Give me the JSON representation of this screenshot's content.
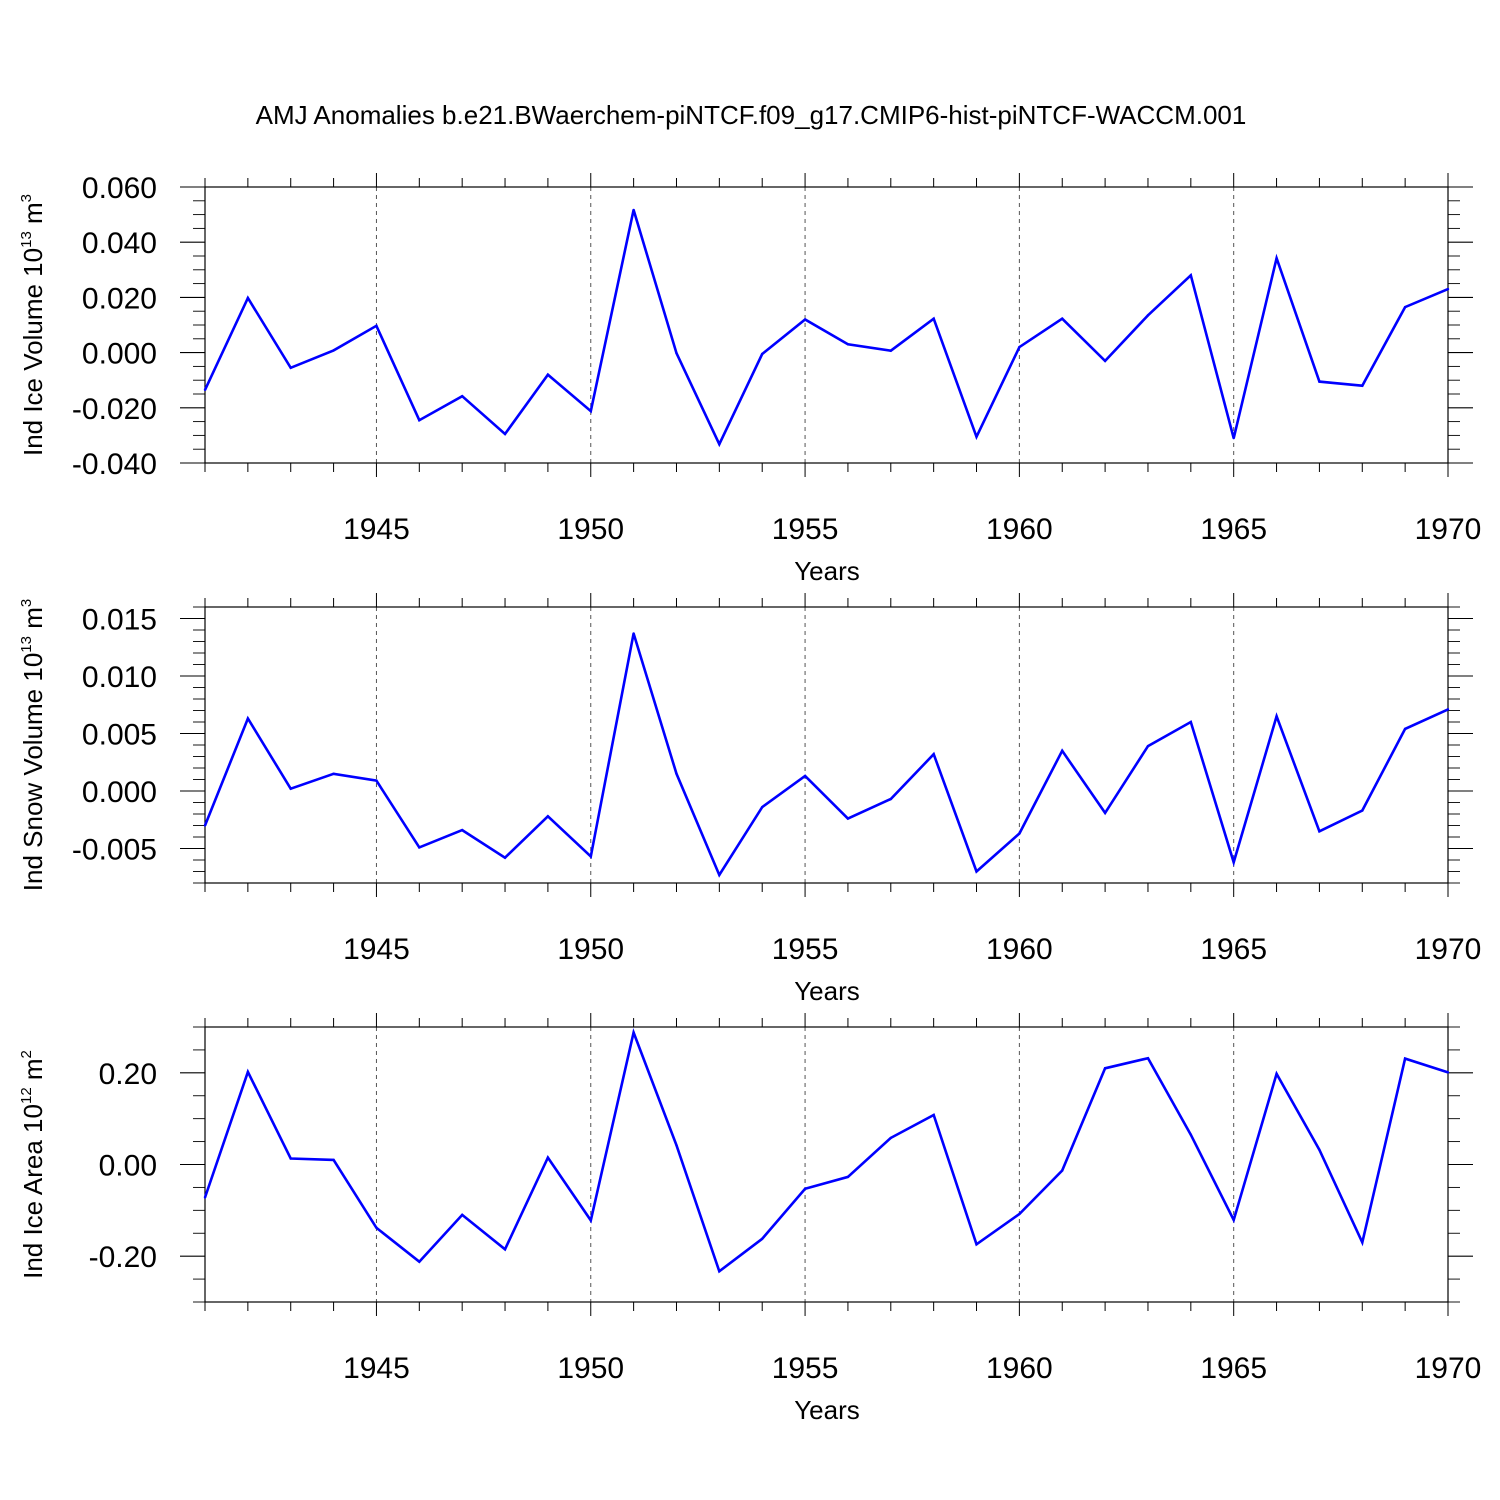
{
  "title": "AMJ Anomalies b.e21.BWaerchem-piNTCF.f09_g17.CMIP6-hist-piNTCF-WACCM.001",
  "colors": {
    "line": "#0000ff",
    "axis": "#000000",
    "grid": "#555555"
  },
  "chart_data": [
    {
      "type": "line",
      "ylabel": "Ind Ice Volume",
      "unit": {
        "base": "10",
        "exp": "13",
        "rest": " m",
        "rest_exp": "3"
      },
      "xlabel": "Years",
      "xlim": [
        1941,
        1970
      ],
      "ylim": [
        -0.04,
        0.06
      ],
      "yticks": [
        -0.04,
        -0.02,
        0.0,
        0.02,
        0.04,
        0.06
      ],
      "ytick_labels": [
        "-0.040",
        "-0.020",
        "0.000",
        "0.020",
        "0.040",
        "0.060"
      ],
      "xticks": [
        1945,
        1950,
        1955,
        1960,
        1965,
        1970
      ],
      "xtick_labels": [
        "1945",
        "1950",
        "1955",
        "1960",
        "1965",
        "1970"
      ],
      "grid_x": [
        1945,
        1950,
        1955,
        1960,
        1965
      ],
      "x": [
        1941,
        1942,
        1943,
        1944,
        1945,
        1946,
        1947,
        1948,
        1949,
        1950,
        1951,
        1952,
        1953,
        1954,
        1955,
        1956,
        1957,
        1958,
        1959,
        1960,
        1961,
        1962,
        1963,
        1964,
        1965,
        1966,
        1967,
        1968,
        1969,
        1970
      ],
      "values": [
        -0.0135,
        0.0198,
        -0.0055,
        0.0008,
        0.0097,
        -0.0245,
        -0.0158,
        -0.0295,
        -0.008,
        -0.0212,
        0.0517,
        -0.0002,
        -0.0332,
        -0.0005,
        0.012,
        0.003,
        0.0007,
        0.0123,
        -0.0305,
        0.002,
        0.0123,
        -0.003,
        0.0135,
        0.028,
        -0.031,
        0.0342,
        -0.0105,
        -0.012,
        0.0165,
        0.023
      ]
    },
    {
      "type": "line",
      "ylabel": "Ind Snow Volume",
      "unit": {
        "base": "10",
        "exp": "13",
        "rest": " m",
        "rest_exp": "3"
      },
      "xlabel": "Years",
      "xlim": [
        1941,
        1970
      ],
      "ylim": [
        -0.008,
        0.016
      ],
      "yticks": [
        -0.005,
        0.0,
        0.005,
        0.01,
        0.015
      ],
      "ytick_labels": [
        "-0.005",
        "0.000",
        "0.005",
        "0.010",
        "0.015"
      ],
      "xticks": [
        1945,
        1950,
        1955,
        1960,
        1965,
        1970
      ],
      "xtick_labels": [
        "1945",
        "1950",
        "1955",
        "1960",
        "1965",
        "1970"
      ],
      "grid_x": [
        1945,
        1950,
        1955,
        1960,
        1965
      ],
      "x": [
        1941,
        1942,
        1943,
        1944,
        1945,
        1946,
        1947,
        1948,
        1949,
        1950,
        1951,
        1952,
        1953,
        1954,
        1955,
        1956,
        1957,
        1958,
        1959,
        1960,
        1961,
        1962,
        1963,
        1964,
        1965,
        1966,
        1967,
        1968,
        1969,
        1970
      ],
      "values": [
        -0.003,
        0.0063,
        0.0002,
        0.0015,
        0.0009,
        -0.0049,
        -0.0034,
        -0.0058,
        -0.0022,
        -0.0057,
        0.0137,
        0.0015,
        -0.0073,
        -0.0014,
        0.0013,
        -0.0024,
        -0.0007,
        0.0032,
        -0.007,
        -0.0037,
        0.0035,
        -0.0019,
        0.0039,
        0.006,
        -0.0062,
        0.0065,
        -0.0035,
        -0.0017,
        0.0054,
        0.0071
      ]
    },
    {
      "type": "line",
      "ylabel": "Ind Ice Area",
      "unit": {
        "base": "10",
        "exp": "12",
        "rest": " m",
        "rest_exp": "2"
      },
      "xlabel": "Years",
      "xlim": [
        1941,
        1970
      ],
      "ylim": [
        -0.3,
        0.3
      ],
      "yticks": [
        -0.2,
        0.0,
        0.2
      ],
      "ytick_labels": [
        "-0.20",
        "0.00",
        "0.20"
      ],
      "xticks": [
        1945,
        1950,
        1955,
        1960,
        1965,
        1970
      ],
      "xtick_labels": [
        "1945",
        "1950",
        "1955",
        "1960",
        "1965",
        "1970"
      ],
      "grid_x": [
        1945,
        1950,
        1955,
        1960,
        1965
      ],
      "x": [
        1941,
        1942,
        1943,
        1944,
        1945,
        1946,
        1947,
        1948,
        1949,
        1950,
        1951,
        1952,
        1953,
        1954,
        1955,
        1956,
        1957,
        1958,
        1959,
        1960,
        1961,
        1962,
        1963,
        1964,
        1965,
        1966,
        1967,
        1968,
        1969,
        1970
      ],
      "values": [
        -0.072,
        0.202,
        0.013,
        0.01,
        -0.138,
        -0.212,
        -0.11,
        -0.185,
        0.015,
        -0.122,
        0.288,
        0.042,
        -0.233,
        -0.162,
        -0.053,
        -0.027,
        0.058,
        0.108,
        -0.174,
        -0.108,
        -0.013,
        0.21,
        0.232,
        0.065,
        -0.121,
        0.198,
        0.032,
        -0.17,
        0.231,
        0.201
      ]
    }
  ]
}
